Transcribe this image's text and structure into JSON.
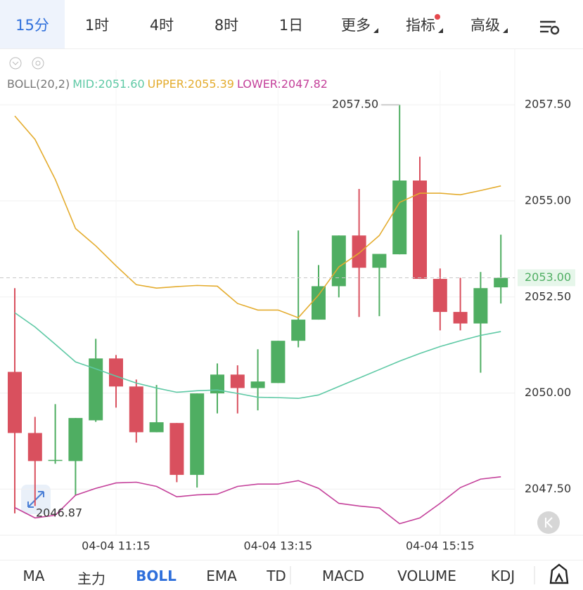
{
  "top_tabs": [
    "15分",
    "1时",
    "4时",
    "8时",
    "1日",
    "更多",
    "指标",
    "高级"
  ],
  "bottom_tabs": [
    "MA",
    "主力",
    "BOLL",
    "EMA",
    "TD",
    "MACD",
    "VOLUME",
    "KDJ"
  ],
  "chart_data": {
    "type": "candlestick",
    "indicator": "BOLL(20,2)",
    "categories": [
      null,
      null,
      null,
      null,
      null,
      "04-04 11:15",
      null,
      null,
      null,
      null,
      null,
      null,
      null,
      "04-04 13:15",
      null,
      null,
      null,
      null,
      null,
      null,
      null,
      "04-04 15:15",
      null,
      null,
      null
    ],
    "open": [
      2050.55,
      2048.96,
      2048.24,
      2048.23,
      2049.29,
      2050.9,
      2050.17,
      2048.98,
      2049.22,
      2047.87,
      2049.99,
      2050.48,
      2050.13,
      2050.26,
      2051.36,
      2051.91,
      2052.78,
      2054.1,
      2053.26,
      2053.61,
      2055.53,
      2052.97,
      2052.11,
      2051.81,
      2052.75
    ],
    "high": [
      2052.73,
      2049.38,
      2049.71,
      2049.35,
      2051.41,
      2050.99,
      2050.35,
      2050.21,
      2049.22,
      2049.99,
      2050.77,
      2050.72,
      2051.14,
      2051.36,
      2054.23,
      2053.33,
      2054.1,
      2055.31,
      2053.62,
      2057.5,
      2056.15,
      2053.24,
      2053.0,
      2053.15,
      2054.12
    ],
    "low": [
      2046.87,
      2047.06,
      2048.16,
      2047.34,
      2049.25,
      2049.62,
      2048.71,
      2048.98,
      2047.68,
      2047.54,
      2049.47,
      2049.47,
      2049.55,
      2050.26,
      2051.19,
      2051.91,
      2052.49,
      2051.98,
      2052.0,
      2053.61,
      2052.97,
      2051.63,
      2051.63,
      2050.53,
      2052.33
    ],
    "close": [
      2048.96,
      2048.23,
      2048.26,
      2049.35,
      2050.9,
      2050.17,
      2048.98,
      2049.24,
      2047.87,
      2049.99,
      2050.48,
      2050.13,
      2050.3,
      2051.36,
      2051.91,
      2052.78,
      2054.1,
      2053.26,
      2053.62,
      2055.53,
      2052.97,
      2052.11,
      2051.81,
      2052.73,
      2053.0
    ],
    "up_color": "#4fae62",
    "down_color": "#d9505e",
    "series": [
      {
        "label": "MID:2051.60",
        "color": "#5ec9a5",
        "values": [
          2052.09,
          2051.72,
          2051.27,
          2050.81,
          2050.63,
          2050.44,
          2050.26,
          2050.13,
          2050.02,
          2050.06,
          2050.08,
          2049.99,
          2049.89,
          2049.88,
          2049.86,
          2049.95,
          2050.17,
          2050.39,
          2050.61,
          2050.83,
          2051.03,
          2051.21,
          2051.36,
          2051.5,
          2051.6
        ]
      },
      {
        "label": "UPPER:2055.39",
        "color": "#e4ac2e",
        "values": [
          2057.21,
          2056.6,
          2055.56,
          2054.28,
          2053.83,
          2053.31,
          2052.82,
          2052.73,
          2052.77,
          2052.8,
          2052.78,
          2052.33,
          2052.16,
          2052.16,
          2051.96,
          2052.55,
          2053.28,
          2053.64,
          2054.1,
          2054.96,
          2055.2,
          2055.2,
          2055.16,
          2055.27,
          2055.39
        ]
      },
      {
        "label": "LOWER:2047.82",
        "color": "#c4409a",
        "values": [
          2047.02,
          2046.75,
          2046.82,
          2047.34,
          2047.52,
          2047.66,
          2047.68,
          2047.57,
          2047.3,
          2047.35,
          2047.37,
          2047.57,
          2047.63,
          2047.63,
          2047.72,
          2047.52,
          2047.13,
          2047.06,
          2047.01,
          2046.6,
          2046.75,
          2047.13,
          2047.54,
          2047.76,
          2047.82
        ]
      }
    ],
    "ylim": [
      2046.3,
      2058.4
    ],
    "yticks": [
      {
        "value": 2047.5,
        "label": "2047.50"
      },
      {
        "value": 2050,
        "label": "2050.00"
      },
      {
        "value": 2052.5,
        "label": "2052.50"
      },
      {
        "value": 2055,
        "label": "2055.00"
      },
      {
        "value": 2057.5,
        "label": "2057.50"
      }
    ],
    "grid": true,
    "max_label": "2057.50",
    "min_label": "2046.87",
    "last_price": {
      "value": 2053.0,
      "label": "2053.00"
    }
  }
}
